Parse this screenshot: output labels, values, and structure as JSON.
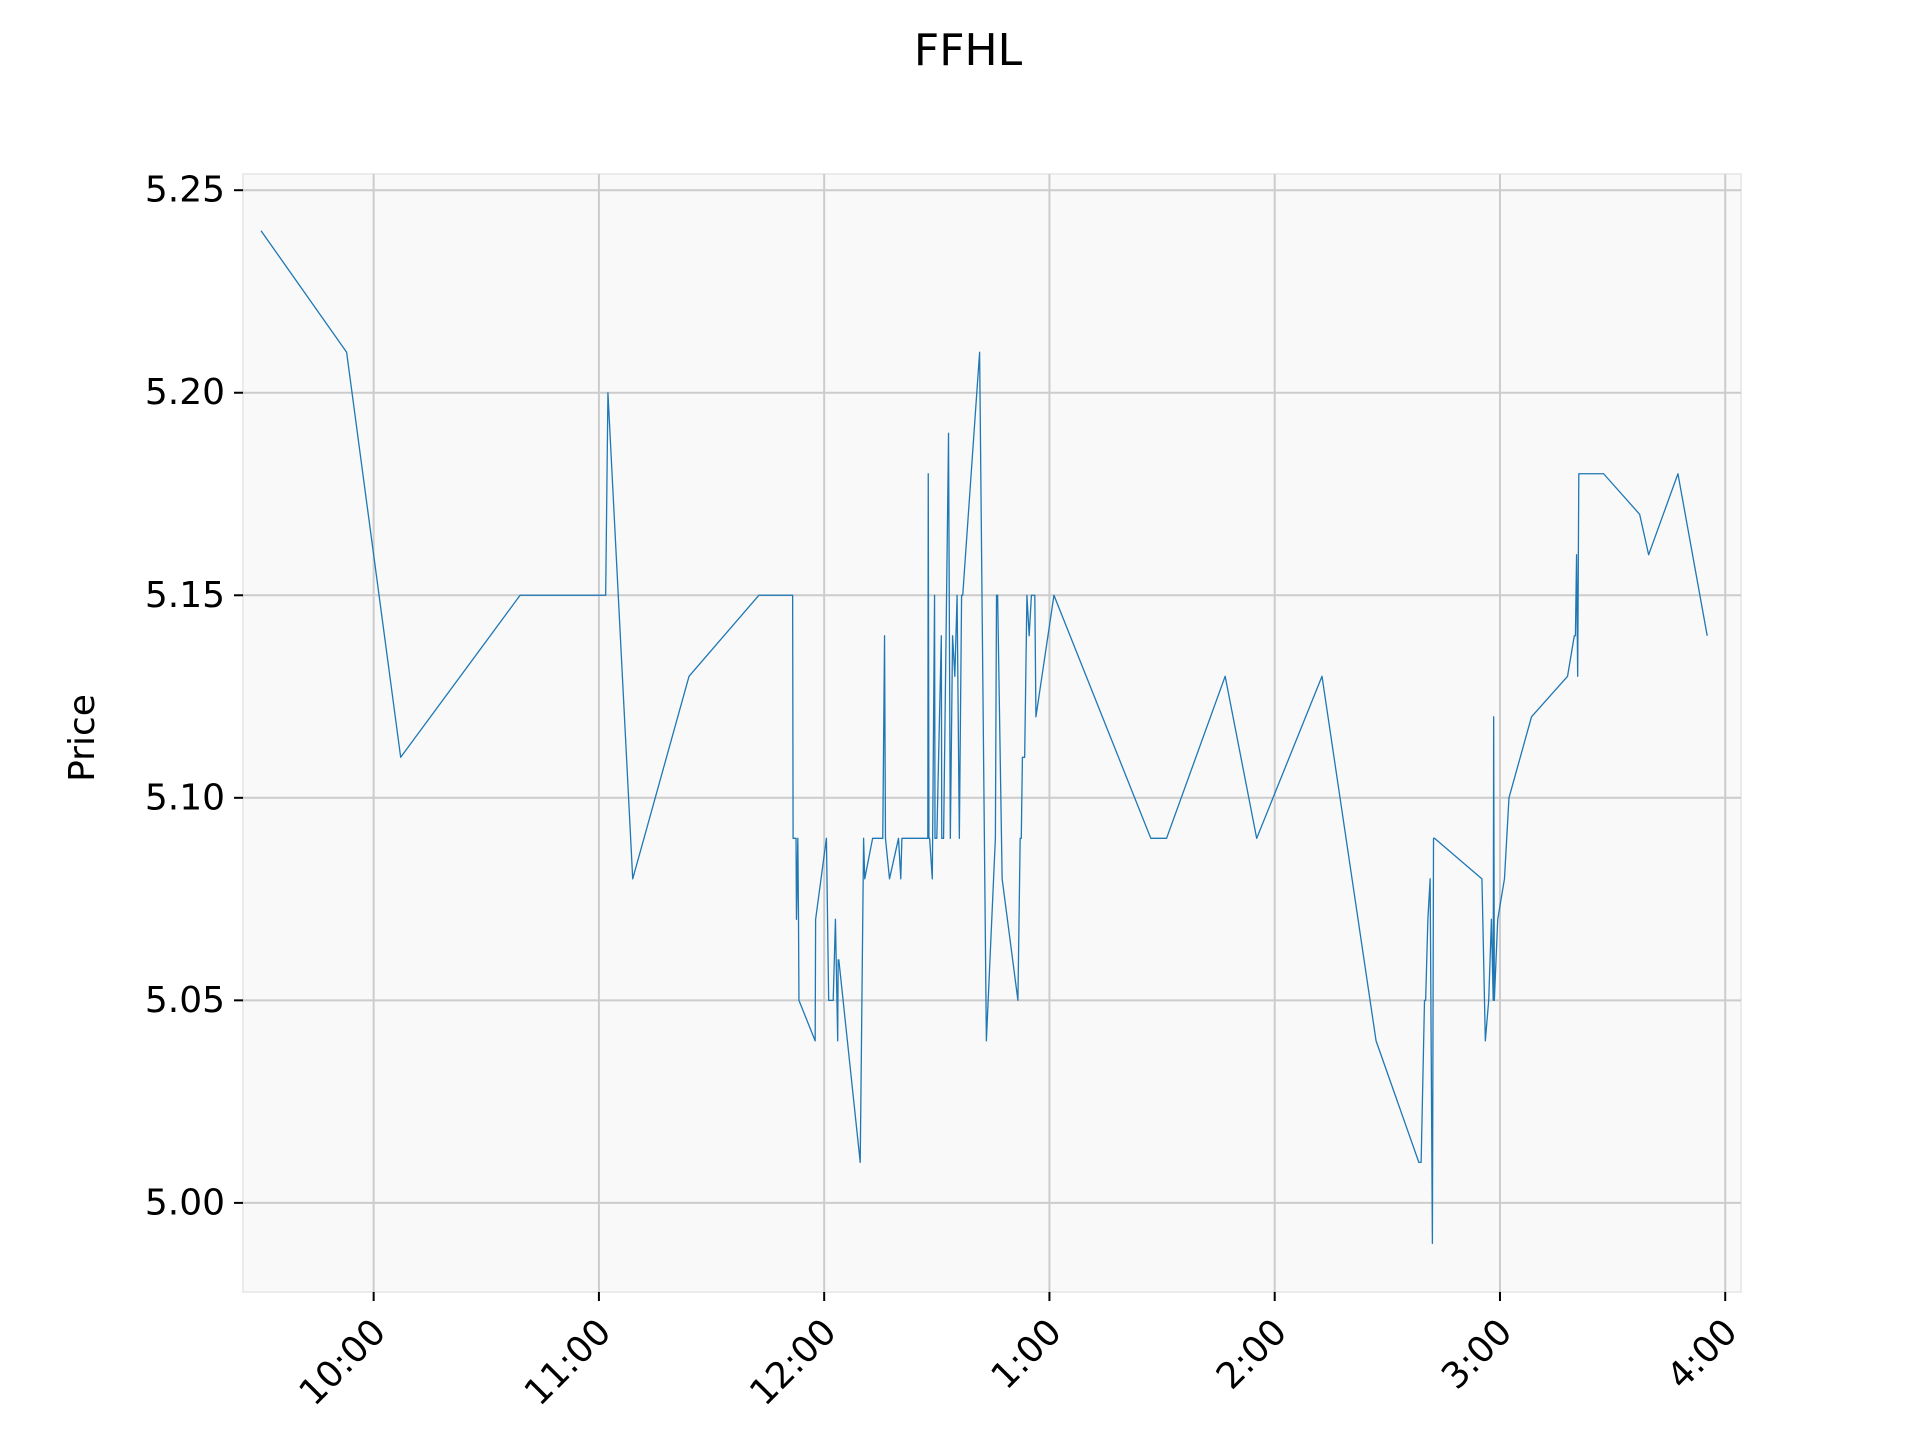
{
  "chart_data": {
    "type": "line",
    "title": "FFHL",
    "xlabel": "",
    "ylabel": "Price",
    "xlim": [
      9.42,
      16.07
    ],
    "ylim": [
      4.978,
      5.254
    ],
    "grid": true,
    "legend": "none",
    "line_color": "#1f77b4",
    "x_ticks": [
      10,
      11,
      12,
      13,
      14,
      15,
      16
    ],
    "x_tick_labels": [
      "10:00",
      "11:00",
      "12:00",
      "1:00",
      "2:00",
      "3:00",
      "4:00"
    ],
    "y_ticks": [
      5.0,
      5.05,
      5.1,
      5.15,
      5.2,
      5.25
    ],
    "y_tick_labels": [
      "5.00",
      "5.05",
      "5.10",
      "5.15",
      "5.20",
      "5.25"
    ],
    "series": [
      {
        "name": "",
        "x": [
          9.5,
          9.88,
          10.12,
          10.65,
          11.03,
          11.04,
          11.15,
          11.4,
          11.71,
          11.86,
          11.862,
          11.875,
          11.877,
          11.883,
          11.886,
          11.888,
          11.96,
          11.962,
          12.01,
          12.02,
          12.022,
          12.04,
          12.05,
          12.06,
          12.062,
          12.065,
          12.16,
          12.175,
          12.18,
          12.215,
          12.26,
          12.268,
          12.272,
          12.29,
          12.33,
          12.34,
          12.345,
          12.35,
          12.36,
          12.38,
          12.46,
          12.462,
          12.465,
          12.468,
          12.48,
          12.49,
          12.492,
          12.5,
          12.52,
          12.522,
          12.53,
          12.55,
          12.552,
          12.56,
          12.57,
          12.58,
          12.59,
          12.6,
          12.61,
          12.615,
          12.69,
          12.72,
          12.76,
          12.765,
          12.77,
          12.79,
          12.86,
          12.87,
          12.875,
          12.88,
          12.89,
          12.9,
          12.91,
          12.92,
          12.935,
          12.94,
          13.02,
          13.45,
          13.52,
          13.78,
          13.92,
          14.21,
          14.45,
          14.64,
          14.65,
          14.665,
          14.67,
          14.68,
          14.69,
          14.7,
          14.705,
          14.71,
          14.92,
          14.935,
          14.95,
          14.962,
          14.97,
          14.972,
          14.975,
          14.99,
          15.02,
          15.04,
          15.14,
          15.3,
          15.33,
          15.335,
          15.34,
          15.345,
          15.35,
          15.46,
          15.62,
          15.66,
          15.79,
          15.92
        ],
        "y": [
          5.24,
          5.21,
          5.11,
          5.15,
          5.15,
          5.2,
          5.08,
          5.13,
          5.15,
          5.15,
          5.09,
          5.09,
          5.07,
          5.09,
          5.07,
          5.05,
          5.04,
          5.07,
          5.09,
          5.05,
          5.05,
          5.05,
          5.07,
          5.04,
          5.06,
          5.06,
          5.01,
          5.09,
          5.08,
          5.09,
          5.09,
          5.14,
          5.09,
          5.08,
          5.09,
          5.08,
          5.09,
          5.09,
          5.09,
          5.09,
          5.09,
          5.18,
          5.09,
          5.09,
          5.08,
          5.15,
          5.09,
          5.09,
          5.14,
          5.09,
          5.09,
          5.18,
          5.19,
          5.09,
          5.14,
          5.13,
          5.15,
          5.09,
          5.15,
          5.15,
          5.21,
          5.04,
          5.09,
          5.15,
          5.15,
          5.08,
          5.05,
          5.09,
          5.09,
          5.11,
          5.11,
          5.15,
          5.14,
          5.15,
          5.15,
          5.12,
          5.15,
          5.09,
          5.09,
          5.13,
          5.09,
          5.13,
          5.04,
          5.01,
          5.01,
          5.05,
          5.05,
          5.07,
          5.08,
          4.99,
          5.09,
          5.09,
          5.08,
          5.04,
          5.05,
          5.07,
          5.05,
          5.12,
          5.05,
          5.07,
          5.08,
          5.1,
          5.12,
          5.13,
          5.14,
          5.14,
          5.16,
          5.13,
          5.18,
          5.18,
          5.17,
          5.16,
          5.18,
          5.14
        ]
      }
    ]
  }
}
